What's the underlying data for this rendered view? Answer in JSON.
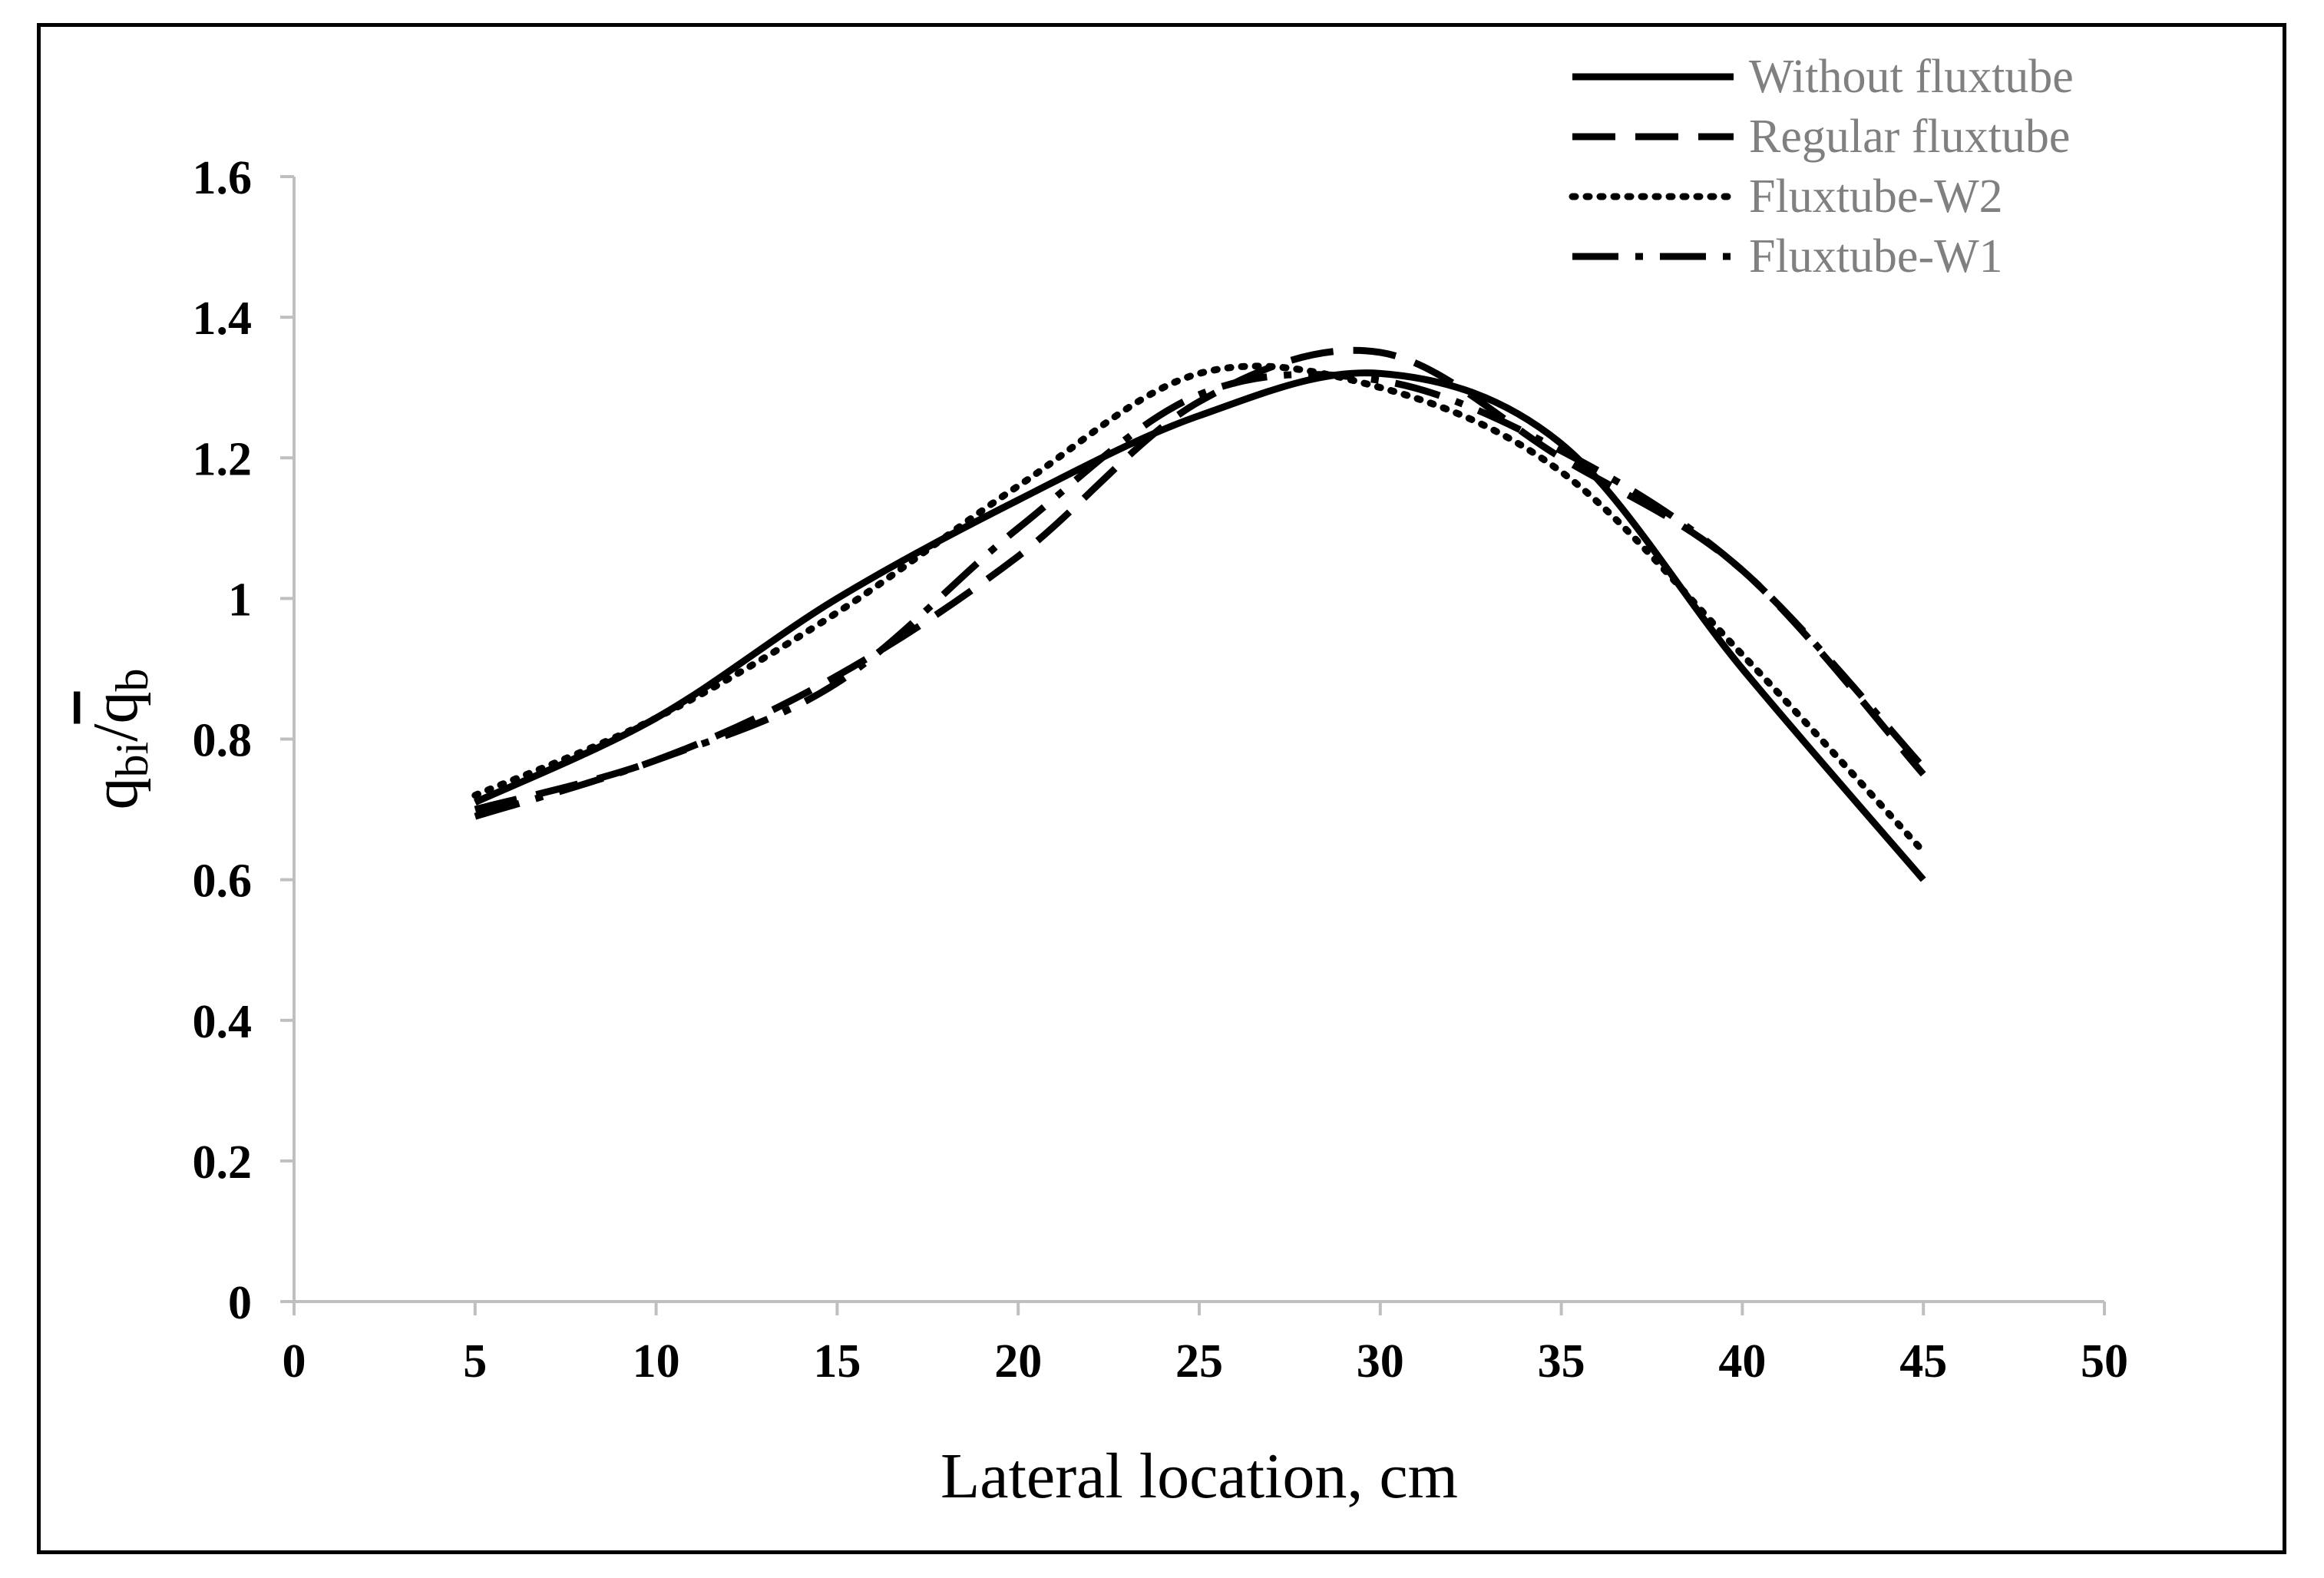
{
  "chart_data": {
    "type": "line",
    "title": "",
    "xlabel": "Lateral location, cm",
    "ylabel": {
      "q1": "q",
      "sub1": "bi",
      "slash": "/",
      "q2": "q",
      "sub2": "b"
    },
    "xlim": [
      0,
      50
    ],
    "ylim": [
      0,
      1.6
    ],
    "x_ticks": [
      "0",
      "5",
      "10",
      "15",
      "20",
      "25",
      "30",
      "35",
      "40",
      "45",
      "50"
    ],
    "y_ticks": [
      "0",
      "0.2",
      "0.4",
      "0.6",
      "0.8",
      "1",
      "1.2",
      "1.4",
      "1.6"
    ],
    "grid": false,
    "legend_position": "top-right",
    "x": [
      5,
      10,
      15,
      20,
      25,
      30,
      35,
      40,
      45
    ],
    "series": [
      {
        "name": "Without fluxtube",
        "style": "solid",
        "values": [
          0.71,
          0.83,
          1.0,
          1.14,
          1.26,
          1.32,
          1.22,
          0.9,
          0.6
        ]
      },
      {
        "name": "Regular fluxtube",
        "style": "dashed",
        "values": [
          0.7,
          0.77,
          0.89,
          1.06,
          1.28,
          1.35,
          1.2,
          1.04,
          0.75
        ]
      },
      {
        "name": "Fluxtube-W2",
        "style": "dotted",
        "values": [
          0.72,
          0.83,
          0.98,
          1.16,
          1.32,
          1.3,
          1.18,
          0.92,
          0.64
        ]
      },
      {
        "name": "Fluxtube-W1",
        "style": "dash-dot",
        "values": [
          0.69,
          0.77,
          0.88,
          1.1,
          1.29,
          1.31,
          1.21,
          1.04,
          0.76
        ]
      }
    ],
    "colors": {
      "lines": "#000000",
      "axis": "#bfbfbf",
      "legend_text": "#808080"
    }
  }
}
